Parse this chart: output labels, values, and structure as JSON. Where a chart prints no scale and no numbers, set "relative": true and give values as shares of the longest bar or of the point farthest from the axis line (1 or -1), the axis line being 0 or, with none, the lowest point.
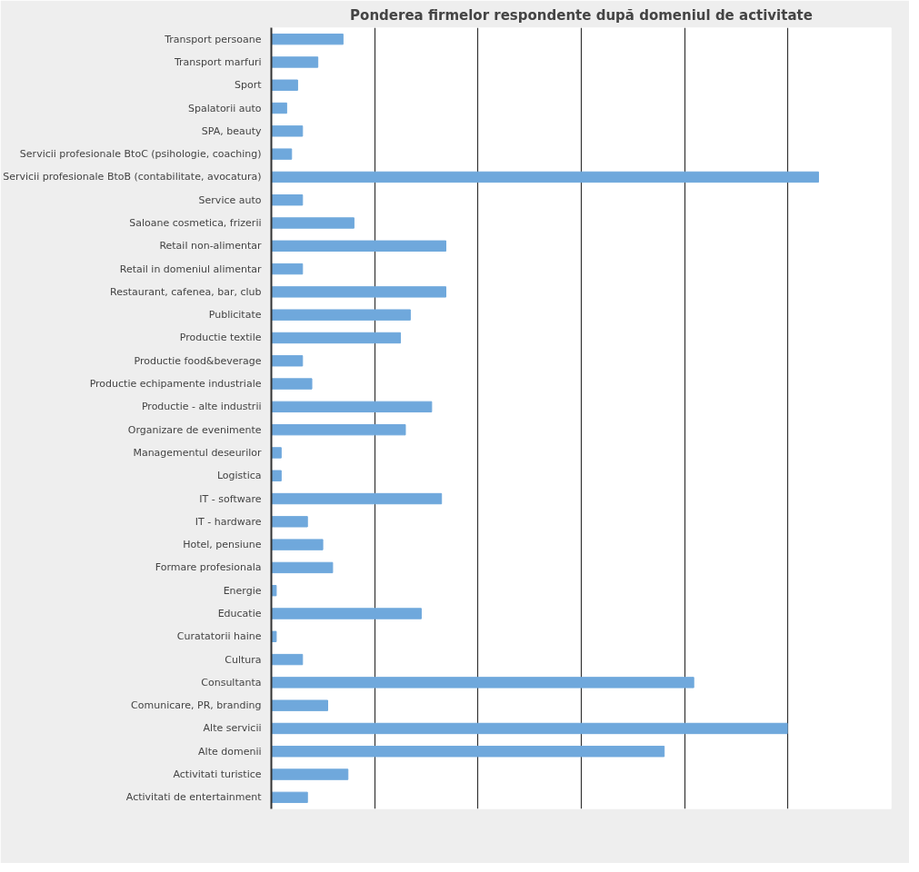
{
  "chart_data": {
    "type": "bar",
    "orientation": "horizontal",
    "relative": true,
    "grid": "x",
    "title": "Ponderea firmelor respondente după domeniul de activitate",
    "categories": [
      "Transport persoane",
      "Transport marfuri",
      "Sport",
      "Spalatorii auto",
      "SPA, beauty",
      "Servicii profesionale BtoC (psihologie, coaching)",
      "Servicii profesionale BtoB (contabilitate, avocatura)",
      "Service auto",
      "Saloane cosmetica, frizerii",
      "Retail non-alimentar",
      "Retail in domeniul alimentar",
      "Restaurant, cafenea, bar, club",
      "Publicitate",
      "Productie textile",
      "Productie food&beverage",
      "Productie echipamente industriale",
      "Productie - alte industrii",
      "Organizare de evenimente",
      "Managementul deseurilor",
      "Logistica",
      "IT - software",
      "IT - hardware",
      "Hotel, pensiune",
      "Formare profesionala",
      "Energie",
      "Educatie",
      "Curatatorii haine",
      "Cultura",
      "Consultanta",
      "Comunicare, PR, branding",
      "Alte servicii",
      "Alte domenii",
      "Activitati turistice",
      "Activitati de entertainment"
    ],
    "values": [
      0.131,
      0.085,
      0.048,
      0.028,
      0.057,
      0.037,
      1,
      0.057,
      0.151,
      0.319,
      0.057,
      0.319,
      0.254,
      0.236,
      0.057,
      0.074,
      0.293,
      0.245,
      0.018,
      0.018,
      0.311,
      0.066,
      0.094,
      0.112,
      0.009,
      0.274,
      0.009,
      0.057,
      0.772,
      0.103,
      0.943,
      0.718,
      0.14,
      0.066
    ],
    "color": "#6fa8dc"
  }
}
